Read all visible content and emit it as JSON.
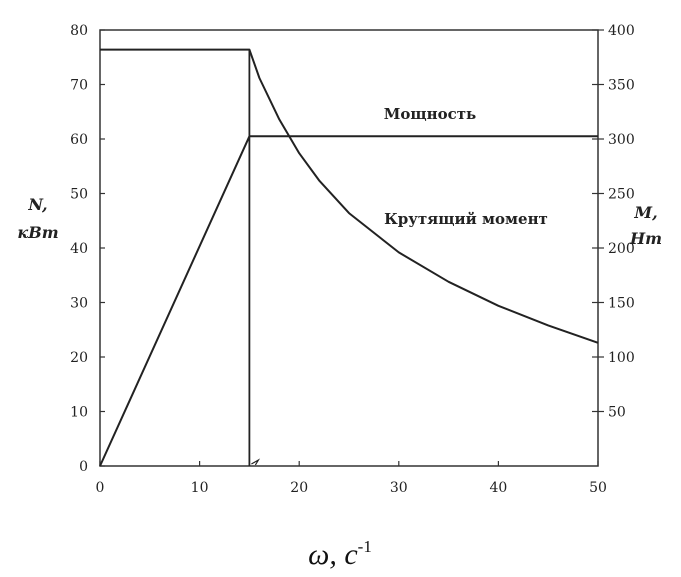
{
  "chart_data": {
    "type": "line",
    "x": [
      0,
      15,
      20,
      30,
      40,
      50
    ],
    "xlim": [
      0,
      50
    ],
    "xticks": [
      "0",
      "10",
      "20",
      "30",
      "40",
      "50"
    ],
    "xlabel_main": "ω, c",
    "xlabel_sup": "-1",
    "left_axis": {
      "label_line1": "N,",
      "label_line2": "кВт",
      "ylim": [
        0,
        80
      ],
      "ticks": [
        "0",
        "10",
        "20",
        "30",
        "40",
        "50",
        "60",
        "70",
        "80"
      ]
    },
    "right_axis": {
      "label_line1": "M,",
      "label_line2": "Нт",
      "ylim": [
        0,
        400
      ],
      "ticks": [
        "50",
        "100",
        "150",
        "200",
        "250",
        "300",
        "350",
        "400"
      ]
    },
    "series": [
      {
        "name": "Мощность",
        "axis": "left",
        "points": [
          [
            0,
            0
          ],
          [
            15,
            60.5
          ],
          [
            50,
            60.5
          ]
        ]
      },
      {
        "name": "Крутящий момент",
        "axis": "right",
        "points": [
          [
            0,
            382
          ],
          [
            15,
            382
          ],
          [
            16,
            356
          ],
          [
            18,
            318
          ],
          [
            20,
            287
          ],
          [
            22,
            262
          ],
          [
            25,
            232
          ],
          [
            30,
            196
          ],
          [
            35,
            169
          ],
          [
            40,
            147
          ],
          [
            45,
            129
          ],
          [
            50,
            113
          ]
        ]
      }
    ],
    "vertical_line_x": 15,
    "colors": {
      "line": "#222222",
      "axis": "#333333"
    }
  }
}
